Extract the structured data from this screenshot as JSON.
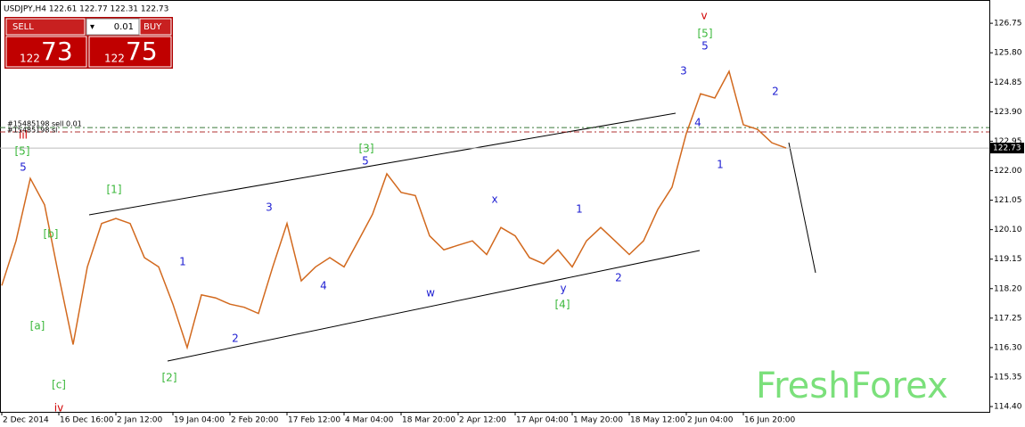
{
  "header": {
    "symbol_info": "USDJPY,H4  122.61 122.77 122.31 122.73"
  },
  "trade_panel": {
    "sell": "SELL",
    "buy": "BUY",
    "lot": "0.01",
    "bid_big": "122",
    "bid_small": "73",
    "ask_big": "122",
    "ask_small": "75"
  },
  "watermark": "FreshForex",
  "chart_data": {
    "type": "line",
    "color": "#d2691e",
    "categories": [
      "2 Dec 2014",
      null,
      null,
      null,
      "16 Dec 16:00",
      null,
      null,
      null,
      "2 Jan 12:00",
      null,
      null,
      null,
      "19 Jan 04:00",
      null,
      null,
      null,
      "2 Feb 20:00",
      null,
      null,
      null,
      "17 Feb 12:00",
      null,
      null,
      null,
      "4 Mar 04:00",
      null,
      null,
      null,
      "18 Mar 20:00",
      null,
      null,
      null,
      "2 Apr 12:00",
      null,
      null,
      null,
      "17 Apr 04:00",
      null,
      null,
      null,
      "1 May 20:00",
      null,
      null,
      null,
      "18 May 12:00",
      null,
      null,
      null,
      "2 Jun 04:00",
      null,
      null,
      null,
      "16 Jun 20:00",
      null,
      null,
      null,
      null,
      null,
      null,
      null,
      null,
      null,
      null,
      null,
      null,
      null,
      null,
      null,
      null,
      null
    ],
    "values": [
      118.3,
      119.74,
      121.75,
      120.9,
      118.6,
      116.4,
      118.9,
      120.3,
      120.46,
      120.3,
      119.2,
      118.9,
      117.7,
      116.3,
      118.0,
      117.9,
      117.7,
      117.6,
      117.4,
      118.9,
      120.3,
      118.45,
      118.9,
      119.2,
      118.9,
      119.74,
      120.6,
      121.9,
      121.3,
      121.2,
      119.9,
      119.45,
      119.6,
      119.74,
      119.3,
      120.17,
      119.9,
      119.2,
      119.0,
      119.45,
      118.9,
      119.74,
      120.17,
      119.74,
      119.3,
      119.74,
      120.75,
      121.47,
      123.2,
      124.48,
      124.34,
      125.2,
      123.48,
      123.33,
      122.9,
      122.73,
      null,
      null,
      null,
      null,
      null,
      null,
      null,
      null,
      null,
      null,
      null,
      null,
      null,
      null
    ],
    "ylim": [
      114.23,
      127.5
    ],
    "yticks": [
      {
        "value": 126.75,
        "label": "126.75"
      },
      {
        "value": 125.8,
        "label": "125.80"
      },
      124.85,
      {
        "value": 123.9,
        "label": "123.90"
      },
      122.95,
      {
        "value": 122.0,
        "label": "122.00"
      },
      121.05,
      {
        "value": 120.1,
        "label": "120.10"
      },
      119.15,
      {
        "value": 118.2,
        "label": "118.20"
      },
      117.25,
      {
        "value": 116.3,
        "label": "116.30"
      },
      115.35,
      {
        "value": 114.4,
        "label": "114.40"
      }
    ],
    "current_price": 122.73,
    "order_lines": [
      {
        "label": "#15485198 sell 0.01",
        "value": 123.39,
        "color": "#3a7a3a"
      },
      {
        "label": "#15485198 sl",
        "value": 123.25,
        "color": "#b03030"
      }
    ],
    "wave_labels": [
      {
        "text": "v",
        "color": "#d00000"
      },
      {
        "text": "[5]",
        "color": "#3cb83c"
      },
      {
        "text": "5",
        "color": "#1e1ed2"
      },
      {
        "text": "3",
        "color": "#1e1ed2"
      },
      {
        "text": "4",
        "color": "#1e1ed2"
      },
      {
        "text": "1",
        "color": "#1e1ed2"
      },
      {
        "text": "2",
        "color": "#1e1ed2"
      },
      {
        "text": "iii",
        "color": "#d00000"
      },
      {
        "text": "[5]",
        "color": "#3cb83c"
      },
      {
        "text": "5",
        "color": "#1e1ed2"
      },
      {
        "text": "[1]",
        "color": "#3cb83c"
      },
      {
        "text": "[b]",
        "color": "#3cb83c"
      },
      {
        "text": "[a]",
        "color": "#3cb83c"
      },
      {
        "text": "[c]",
        "color": "#3cb83c"
      },
      {
        "text": "iv",
        "color": "#d00000"
      },
      {
        "text": "1",
        "color": "#1e1ed2"
      },
      {
        "text": "2",
        "color": "#1e1ed2"
      },
      {
        "text": "[2]",
        "color": "#3cb83c"
      },
      {
        "text": "3",
        "color": "#1e1ed2"
      },
      {
        "text": "4",
        "color": "#1e1ed2"
      },
      {
        "text": "[3]",
        "color": "#3cb83c"
      },
      {
        "text": "5",
        "color": "#1e1ed2"
      },
      {
        "text": "x",
        "color": "#1e1ed2"
      },
      {
        "text": "w",
        "color": "#1e1ed2"
      },
      {
        "text": "y",
        "color": "#1e1ed2"
      },
      {
        "text": "[4]",
        "color": "#3cb83c"
      },
      {
        "text": "1",
        "color": "#1e1ed2"
      },
      {
        "text": "2",
        "color": "#1e1ed2"
      }
    ]
  }
}
